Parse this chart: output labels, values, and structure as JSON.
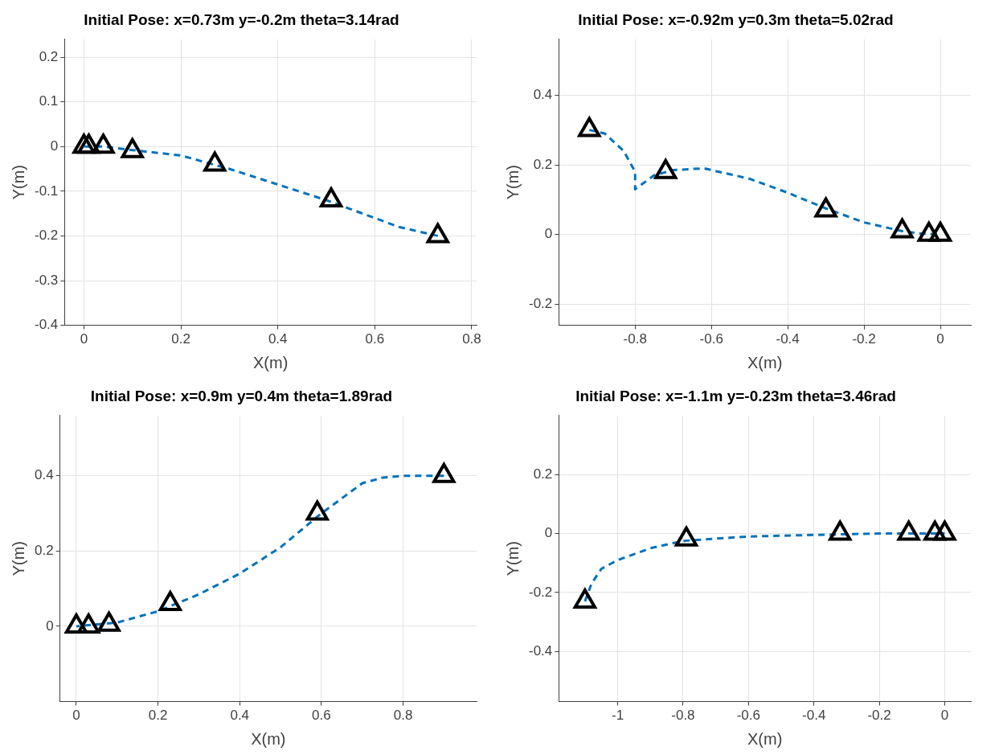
{
  "chart_data": [
    {
      "type": "line",
      "title": "Initial Pose: x=0.73m y=-0.2m theta=3.14rad",
      "xlabel": "X(m)",
      "ylabel": "Y(m)",
      "xlim": [
        -0.04,
        0.81
      ],
      "xticks": [
        0,
        0.2,
        0.4,
        0.6,
        0.8
      ],
      "ylim": [
        -0.4,
        0.24
      ],
      "yticks": [
        -0.4,
        -0.3,
        -0.2,
        -0.1,
        0,
        0.1,
        0.2
      ],
      "grid": true,
      "legend": false,
      "series": [
        {
          "color": "#0072bd",
          "line_style": "dashed",
          "marker": "none",
          "x": [
            0.73,
            0.65,
            0.55,
            0.5,
            0.4,
            0.3,
            0.2,
            0.1,
            0.04,
            0
          ],
          "values": [
            -0.2,
            -0.18,
            -0.14,
            -0.12,
            -0.085,
            -0.05,
            -0.02,
            -0.008,
            0,
            0
          ]
        },
        {
          "type": "scatter",
          "color": "#000000",
          "marker": "triangle",
          "x": [
            0.73,
            0.51,
            0.27,
            0.1,
            0.04,
            0.01,
            0
          ],
          "values": [
            -0.2,
            -0.12,
            -0.04,
            -0.01,
            0,
            0,
            0
          ]
        }
      ]
    },
    {
      "type": "line",
      "title": "Initial Pose: x=-0.92m y=0.3m theta=5.02rad",
      "xlabel": "X(m)",
      "ylabel": "Y(m)",
      "xlim": [
        -1.0,
        0.08
      ],
      "xticks": [
        -0.8,
        -0.6,
        -0.4,
        -0.2,
        0
      ],
      "ylim": [
        -0.26,
        0.56
      ],
      "yticks": [
        -0.2,
        0,
        0.2,
        0.4
      ],
      "grid": true,
      "legend": false,
      "series": [
        {
          "color": "#0072bd",
          "line_style": "dashed",
          "marker": "none",
          "x": [
            -0.92,
            -0.88,
            -0.83,
            -0.8,
            -0.8,
            -0.75,
            -0.7,
            -0.62,
            -0.5,
            -0.4,
            -0.3,
            -0.2,
            -0.1,
            -0.05,
            0
          ],
          "values": [
            0.3,
            0.29,
            0.24,
            0.18,
            0.13,
            0.17,
            0.185,
            0.19,
            0.16,
            0.12,
            0.075,
            0.035,
            0.01,
            0.003,
            0
          ]
        },
        {
          "type": "scatter",
          "color": "#000000",
          "marker": "triangle",
          "x": [
            -0.92,
            -0.72,
            -0.3,
            -0.1,
            -0.03,
            0
          ],
          "values": [
            0.3,
            0.18,
            0.07,
            0.01,
            0,
            0
          ]
        }
      ]
    },
    {
      "type": "line",
      "title": "Initial Pose: x=0.9m y=0.4m theta=1.89rad",
      "xlabel": "X(m)",
      "ylabel": "Y(m)",
      "xlim": [
        -0.04,
        0.98
      ],
      "xticks": [
        0,
        0.2,
        0.4,
        0.6,
        0.8
      ],
      "ylim": [
        -0.2,
        0.56
      ],
      "yticks": [
        0,
        0.2,
        0.4
      ],
      "grid": true,
      "legend": false,
      "series": [
        {
          "color": "#0072bd",
          "line_style": "dashed",
          "marker": "none",
          "x": [
            0.9,
            0.8,
            0.75,
            0.7,
            0.6,
            0.5,
            0.4,
            0.3,
            0.2,
            0.1,
            0
          ],
          "values": [
            0.4,
            0.4,
            0.395,
            0.38,
            0.3,
            0.21,
            0.14,
            0.085,
            0.04,
            0.01,
            0
          ]
        },
        {
          "type": "scatter",
          "color": "#000000",
          "marker": "triangle",
          "x": [
            0.9,
            0.59,
            0.23,
            0.08,
            0.03,
            0
          ],
          "values": [
            0.4,
            0.3,
            0.06,
            0.005,
            0,
            0
          ]
        }
      ]
    },
    {
      "type": "line",
      "title": "Initial Pose: x=-1.1m y=-0.23m theta=3.46rad",
      "xlabel": "X(m)",
      "ylabel": "Y(m)",
      "xlim": [
        -1.18,
        0.08
      ],
      "xticks": [
        -1,
        -0.8,
        -0.6,
        -0.4,
        -0.2,
        0
      ],
      "ylim": [
        -0.57,
        0.4
      ],
      "yticks": [
        -0.4,
        -0.2,
        0,
        0.2
      ],
      "grid": true,
      "legend": false,
      "series": [
        {
          "color": "#0072bd",
          "line_style": "dashed",
          "marker": "none",
          "x": [
            -1.1,
            -1.08,
            -1.05,
            -1.0,
            -0.9,
            -0.8,
            -0.6,
            -0.4,
            -0.2,
            0
          ],
          "values": [
            -0.23,
            -0.17,
            -0.12,
            -0.09,
            -0.05,
            -0.025,
            -0.01,
            -0.005,
            0,
            0
          ]
        },
        {
          "type": "scatter",
          "color": "#000000",
          "marker": "triangle",
          "x": [
            -1.1,
            -0.79,
            -0.32,
            -0.11,
            -0.03,
            0
          ],
          "values": [
            -0.23,
            -0.02,
            0,
            0,
            0,
            0
          ]
        }
      ]
    }
  ]
}
